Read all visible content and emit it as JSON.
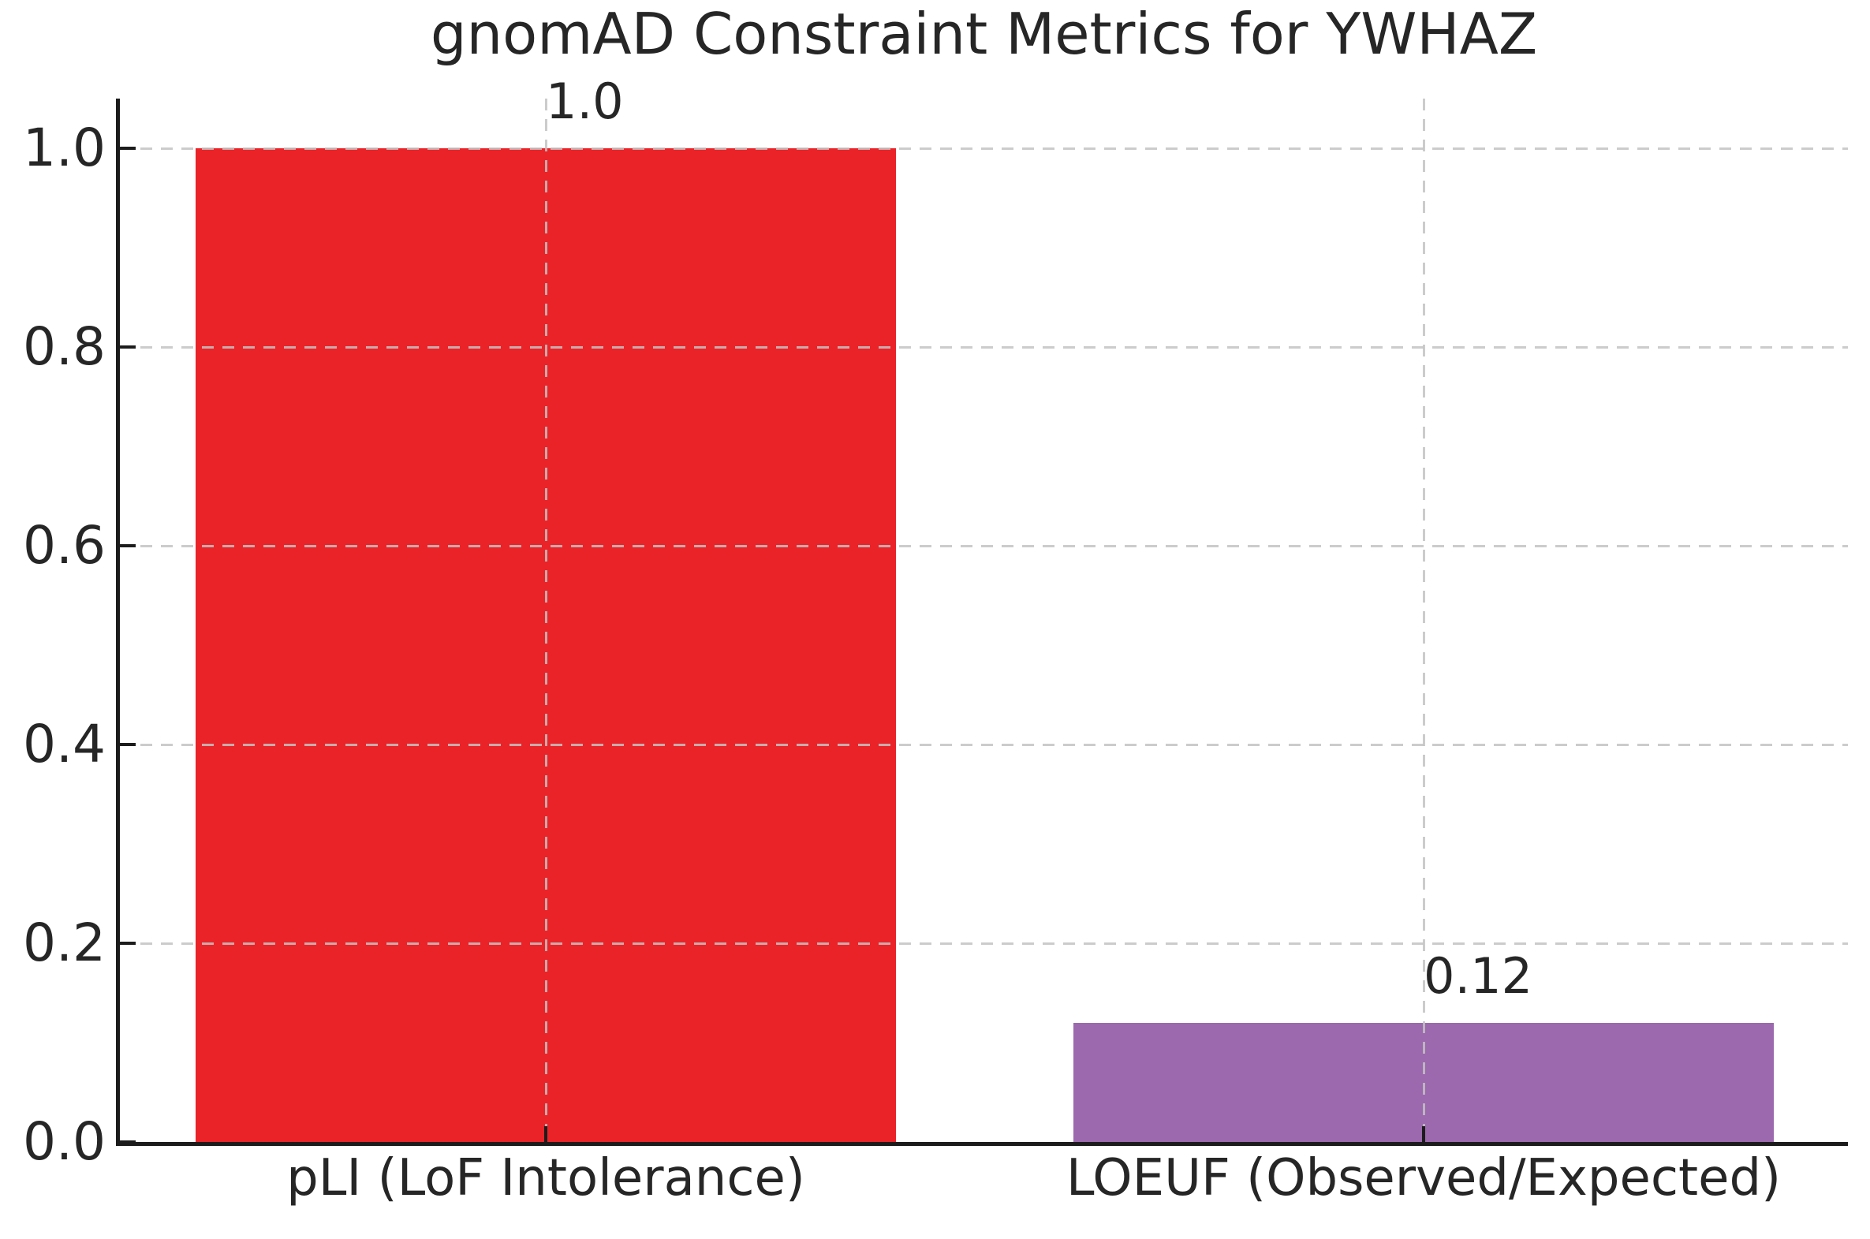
{
  "chart_data": {
    "type": "bar",
    "title": "gnomAD Constraint Metrics for YWHAZ",
    "categories": [
      "pLI (LoF Intolerance)",
      "LOEUF (Observed/Expected)"
    ],
    "values": [
      1.0,
      0.12
    ],
    "value_labels": [
      "1.0",
      "0.12"
    ],
    "series": [
      {
        "name": "pLI (LoF Intolerance)",
        "value": 1.0,
        "color": "#EA2328"
      },
      {
        "name": "LOEUF (Observed/Expected)",
        "value": 0.12,
        "color": "#9C68AE"
      }
    ],
    "bar_colors": [
      "#EA2328",
      "#9C68AE"
    ],
    "xlabel": "",
    "ylabel": "",
    "ylim": [
      0.0,
      1.05
    ],
    "yticks": [
      0.0,
      0.2,
      0.4,
      0.6,
      0.8,
      1.0
    ],
    "ytick_labels": [
      "0.0",
      "0.2",
      "0.4",
      "0.6",
      "0.8",
      "1.0"
    ],
    "grid": "dashed gridlines on both axes, drawn over bars",
    "legend": "none",
    "colors": {
      "background": "#ffffff",
      "text": "#262626",
      "spine": "#1c1c1c",
      "grid": "rgba(195,195,195,0.85)"
    }
  }
}
